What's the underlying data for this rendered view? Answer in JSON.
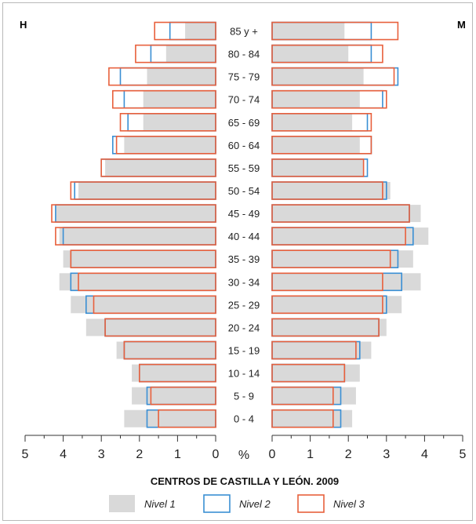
{
  "chart_data": {
    "type": "bar",
    "title": "CENTROS DE CASTILLA Y LEÓN. 2009",
    "left_label": "H",
    "right_label": "M",
    "unit_label": "%",
    "x_ticks_left": [
      "5",
      "4",
      "3",
      "2",
      "1",
      "0"
    ],
    "x_ticks_right": [
      "0",
      "1",
      "2",
      "3",
      "4",
      "5"
    ],
    "xlim": [
      0,
      5
    ],
    "grid": false,
    "legend_position": "bottom",
    "categories": [
      "85 y +",
      "80 - 84",
      "75 - 79",
      "70 - 74",
      "65 - 69",
      "60 - 64",
      "55 - 59",
      "50 - 54",
      "45 - 49",
      "40 - 44",
      "35 - 39",
      "30 - 34",
      "25 - 29",
      "20 - 24",
      "15 - 19",
      "10 - 14",
      "5 - 9",
      "0 - 4"
    ],
    "series": [
      {
        "name": "Nivel 1",
        "style": "fill",
        "color": "#d9d9d9",
        "hombres": [
          0.8,
          1.3,
          1.8,
          1.9,
          1.9,
          2.4,
          2.9,
          3.6,
          4.2,
          4.1,
          4.0,
          4.1,
          3.8,
          3.4,
          2.6,
          2.2,
          2.2,
          2.4
        ],
        "mujeres": [
          1.9,
          2.0,
          2.4,
          2.3,
          2.1,
          2.3,
          2.4,
          3.1,
          3.9,
          4.1,
          3.7,
          3.9,
          3.4,
          3.0,
          2.6,
          2.3,
          2.2,
          2.1
        ]
      },
      {
        "name": "Nivel 2",
        "style": "outline",
        "color": "#3a8fd4",
        "hombres": [
          1.2,
          1.7,
          2.5,
          2.4,
          2.3,
          2.7,
          3.0,
          3.7,
          4.2,
          4.0,
          3.8,
          3.8,
          3.4,
          2.9,
          2.4,
          2.0,
          1.8,
          1.8
        ],
        "mujeres": [
          2.6,
          2.6,
          3.3,
          2.9,
          2.5,
          2.6,
          2.5,
          3.0,
          3.6,
          3.7,
          3.3,
          3.4,
          3.0,
          2.8,
          2.3,
          1.9,
          1.8,
          1.8
        ]
      },
      {
        "name": "Nivel 3",
        "style": "outline",
        "color": "#e8603c",
        "hombres": [
          1.6,
          2.1,
          2.8,
          2.7,
          2.5,
          2.6,
          3.0,
          3.8,
          4.3,
          4.2,
          3.8,
          3.6,
          3.2,
          2.9,
          2.4,
          2.0,
          1.7,
          1.5
        ],
        "mujeres": [
          3.3,
          2.9,
          3.2,
          3.0,
          2.6,
          2.6,
          2.4,
          2.9,
          3.6,
          3.5,
          3.1,
          2.9,
          2.9,
          2.8,
          2.2,
          1.9,
          1.6,
          1.6
        ]
      }
    ]
  }
}
